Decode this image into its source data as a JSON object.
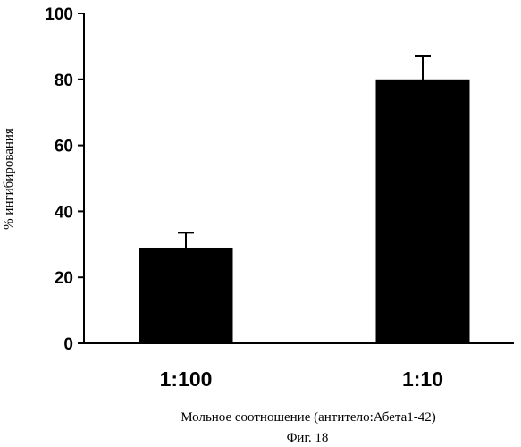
{
  "chart_data": {
    "type": "bar",
    "categories": [
      "1:100",
      "1:10"
    ],
    "values": [
      29,
      80
    ],
    "errors": [
      4.5,
      7
    ],
    "xlabel": "Мольное соотношение (антитело:Абета1-42)",
    "ylabel": "% ингибирования",
    "ylim": [
      0,
      100
    ],
    "yticks": [
      0,
      20,
      40,
      60,
      80,
      100
    ],
    "bar_color": "#000000",
    "grid": false
  },
  "figure": {
    "caption": "Фиг. 18"
  }
}
